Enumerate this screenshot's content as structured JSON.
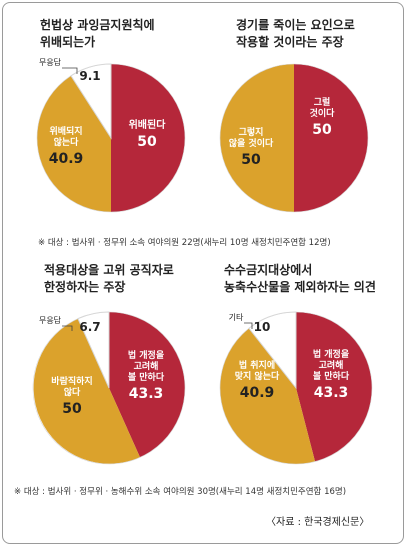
{
  "colors": {
    "red": "#b5273a",
    "orange": "#dba22c",
    "white": "#ffffff",
    "outline": "#d7d7d7"
  },
  "chart_data": [
    {
      "type": "pie",
      "title": "헌법상 과잉금지원칙에\n위배되는가",
      "slices": [
        {
          "label": "위배된다",
          "value": 50,
          "color": "#b5273a",
          "value_text": "50"
        },
        {
          "label": "위배되지\n않는다",
          "value": 40.9,
          "color": "#dba22c",
          "value_text": "40.9"
        },
        {
          "label": "무응답",
          "value": 9.1,
          "color": "#ffffff",
          "value_text": "9.1",
          "outside": true
        }
      ]
    },
    {
      "type": "pie",
      "title": "경기를 죽이는 요인으로\n작용할 것이라는 주장",
      "slices": [
        {
          "label": "그럴\n것이다",
          "value": 50,
          "color": "#b5273a",
          "value_text": "50"
        },
        {
          "label": "그렇지\n않을 것이다",
          "value": 50,
          "color": "#dba22c",
          "value_text": "50"
        }
      ]
    },
    {
      "type": "pie",
      "title": "적용대상을 고위 공직자로\n한정하자는 주장",
      "slices": [
        {
          "label": "법 개정을\n고려해\n볼 만하다",
          "value": 43.3,
          "color": "#b5273a",
          "value_text": "43.3"
        },
        {
          "label": "바람직하지\n않다",
          "value": 50,
          "color": "#dba22c",
          "value_text": "50"
        },
        {
          "label": "무응답",
          "value": 6.7,
          "color": "#ffffff",
          "value_text": "6.7",
          "outside": true
        }
      ]
    },
    {
      "type": "pie",
      "title": "수수금지대상에서\n농축수산물을 제외하자는 의견",
      "slices": [
        {
          "label": "법 개정을\n고려해\n볼 만하다",
          "value": 43.3,
          "color": "#b5273a",
          "value_text": "43.3"
        },
        {
          "label": "법 취지에\n맞지 않는다",
          "value": 40.9,
          "color": "#dba22c",
          "value_text": "40.9"
        },
        {
          "label": "기타",
          "value": 10,
          "color": "#ffffff",
          "value_text": "10",
          "outside": true
        }
      ]
    }
  ],
  "notes": {
    "top": "※ 대상 : 법사위 · 정무위 소속 여야의원 22명(새누리 10명 새정치민주연합 12명)",
    "bottom": "※ 대상 : 법사위 · 정무위 · 농해수위 소속 여야의원 30명(새누리 14명 새정치민주연합 16명)"
  },
  "source": "〈자료 : 한국경제신문〉"
}
